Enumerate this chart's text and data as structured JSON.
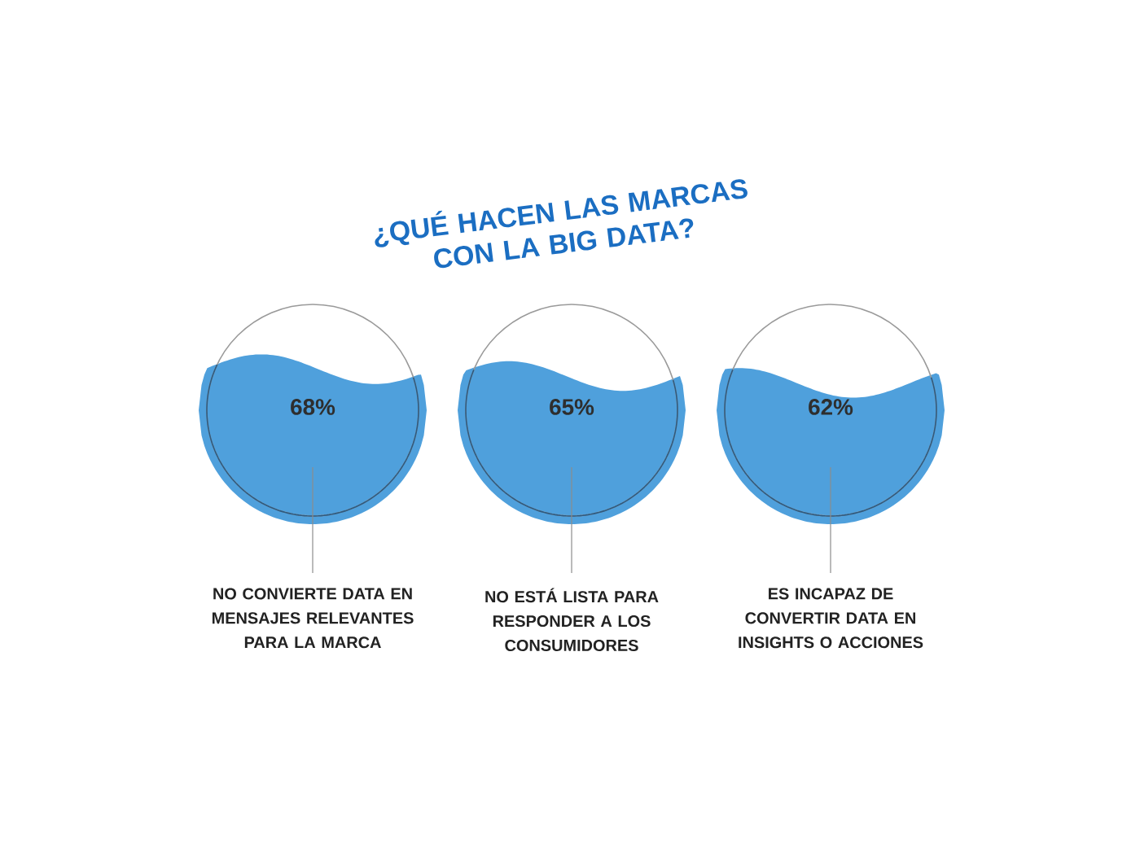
{
  "chart_data": {
    "type": "other",
    "title": "¿QUÉ HACEN LAS MARCAS CON LA BIG DATA?",
    "categories": [
      "NO CONVIERTE DATA EN MENSAJES RELEVANTES PARA LA MARCA",
      "NO ESTÁ LISTA PARA RESPONDER A LOS CONSUMIDORES",
      "ES INCAPAZ DE CONVERTIR DATA EN INSIGHTS O ACCIONES"
    ],
    "values": [
      68,
      65,
      62
    ],
    "value_labels": [
      "68%",
      "65%",
      "62%"
    ],
    "color": "#4fa0dc"
  }
}
